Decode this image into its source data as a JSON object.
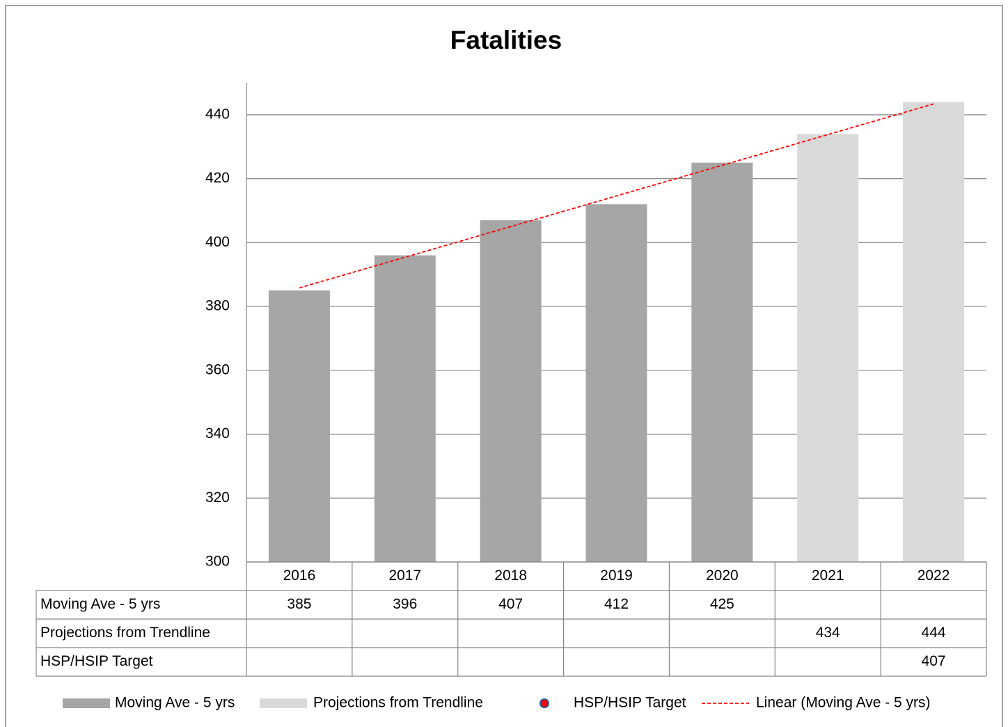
{
  "chart_data": {
    "type": "bar",
    "title": "Fatalities",
    "categories": [
      "2016",
      "2017",
      "2018",
      "2019",
      "2020",
      "2021",
      "2022"
    ],
    "series": [
      {
        "name": "Moving Ave - 5 yrs",
        "color": "#a6a6a6",
        "values": [
          385,
          396,
          407,
          412,
          425,
          null,
          null
        ]
      },
      {
        "name": "Projections from Trendline",
        "color": "#d9d9d9",
        "values": [
          null,
          null,
          null,
          null,
          null,
          434,
          444
        ]
      },
      {
        "name": "HSP/HSIP Target",
        "color": "#ff0000",
        "marker": "circle",
        "values": [
          null,
          null,
          null,
          null,
          null,
          null,
          407
        ]
      }
    ],
    "trendline": {
      "name": "Linear (Moving Ave - 5 yrs)",
      "color": "#ff0000",
      "type": "linear",
      "series": 0
    },
    "ylim": [
      300,
      450
    ],
    "yticks": [
      300,
      320,
      340,
      360,
      380,
      400,
      420,
      440
    ],
    "grid": true,
    "data_table": true,
    "legend": "bottom"
  }
}
